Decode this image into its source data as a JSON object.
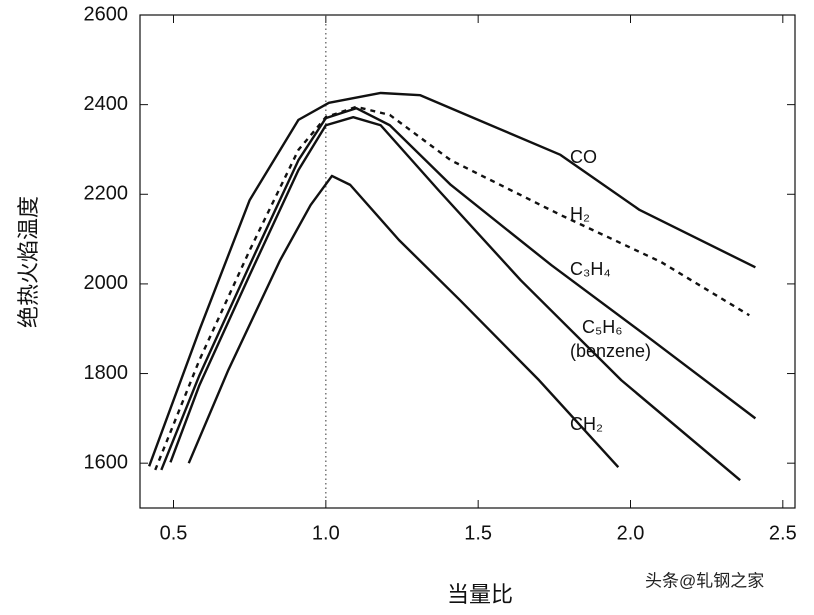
{
  "chart_data": {
    "type": "line",
    "x_label": "当量比",
    "y_label": "绝热火焰温度",
    "xlim": [
      0.39,
      2.54
    ],
    "ylim": [
      1500,
      2600
    ],
    "xticks": [
      {
        "value": 0.5,
        "label": "0.5"
      },
      {
        "value": 1.0,
        "label": "1.0"
      },
      {
        "value": 1.5,
        "label": "1.5"
      },
      {
        "value": 2.0,
        "label": "2.0"
      },
      {
        "value": 2.5,
        "label": "2.5"
      }
    ],
    "yticks": [
      1600,
      1800,
      2000,
      2200,
      2400,
      2600
    ],
    "vline": {
      "x": 1.0,
      "color": "#555",
      "dotted": true
    },
    "watermark": "头条@轧钢之家",
    "series": [
      {
        "name": "CO",
        "color": "#111",
        "dashed": false,
        "x": [
          0.42,
          0.585,
          0.75,
          0.91,
          1.01,
          1.18,
          1.31,
          1.5,
          1.77,
          2.03,
          2.41
        ],
        "values": [
          1593,
          1897,
          2187,
          2366,
          2404,
          2426,
          2421,
          2366,
          2288,
          2165,
          2037
        ]
      },
      {
        "name": "H₂",
        "color": "#111",
        "dashed": true,
        "x": [
          0.44,
          0.585,
          0.75,
          0.91,
          1.0,
          1.1,
          1.21,
          1.41,
          1.77,
          2.1,
          2.39
        ],
        "values": [
          1585,
          1830,
          2075,
          2299,
          2372,
          2395,
          2377,
          2276,
          2154,
          2049,
          1930
        ]
      },
      {
        "name": "C₃H₄",
        "color": "#111",
        "dashed": false,
        "x": [
          0.46,
          0.585,
          0.75,
          0.91,
          1.0,
          1.1,
          1.21,
          1.41,
          1.74,
          2.07,
          2.41
        ],
        "values": [
          1585,
          1796,
          2042,
          2276,
          2370,
          2392,
          2354,
          2221,
          2042,
          1875,
          1700
        ]
      },
      {
        "name": "C₅H₆",
        "annotation": "(benzene)",
        "color": "#111",
        "dashed": false,
        "x": [
          0.49,
          0.585,
          0.75,
          0.91,
          1.0,
          1.09,
          1.18,
          1.37,
          1.64,
          1.97,
          2.36
        ],
        "values": [
          1602,
          1774,
          2020,
          2254,
          2354,
          2372,
          2354,
          2209,
          2008,
          1785,
          1562
        ]
      },
      {
        "name": "CH₂",
        "color": "#111",
        "dashed": false,
        "x": [
          0.55,
          0.68,
          0.85,
          0.95,
          1.02,
          1.08,
          1.24,
          1.44,
          1.7,
          1.96
        ],
        "values": [
          1600,
          1808,
          2053,
          2176,
          2241,
          2221,
          2098,
          1964,
          1785,
          1591
        ]
      }
    ]
  }
}
